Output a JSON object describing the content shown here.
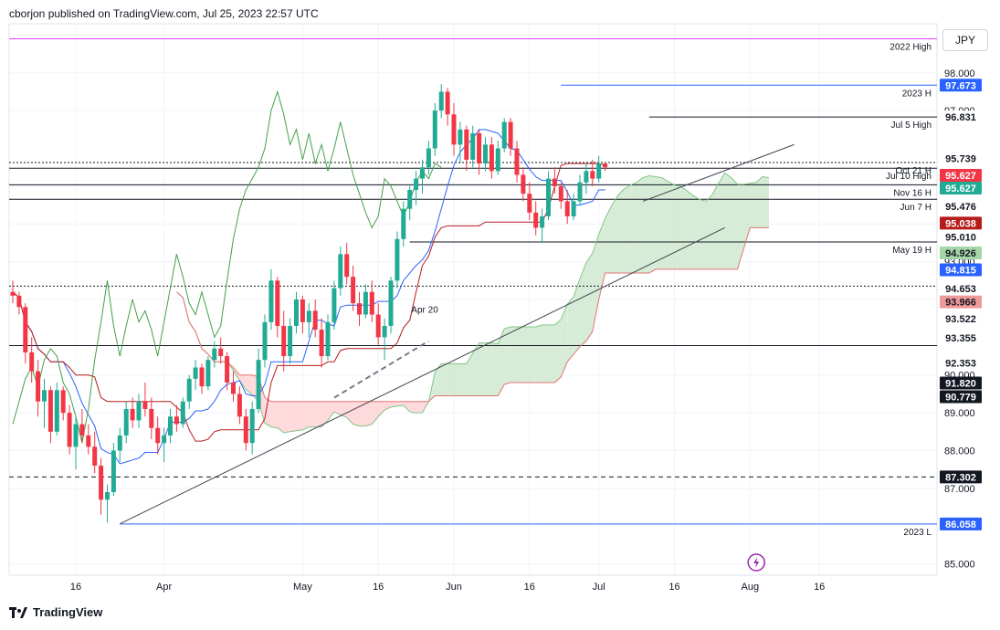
{
  "header": {
    "text": "cborjon published on TradingView.com, Jul 25, 2023 22:57 UTC"
  },
  "currency": "JPY",
  "footer": {
    "brand": "TradingView"
  },
  "colors": {
    "up": "#26a69a",
    "up_candle": "#22ab94",
    "down": "#f23645",
    "tenkan": "#2962ff",
    "kijun": "#b71c1c",
    "chikou": "#43a047",
    "cloud_bull": "#c8e6c9",
    "cloud_bear": "#ffcdd2",
    "grid": "#f0f3fa",
    "hline": "#131722",
    "high2022": "#e040fb",
    "blue_level": "#2962ff"
  },
  "chart_data": {
    "type": "candlestick",
    "symbol": "JPY",
    "x_ticks": [
      "16",
      "Apr",
      "May",
      "16",
      "Jun",
      "16",
      "Jul",
      "16",
      "Aug",
      "16"
    ],
    "y_ticks": [
      "98.000",
      "97.000",
      "95.000",
      "94.000",
      "93.000",
      "92.000",
      "90.000",
      "89.000",
      "88.000",
      "87.000",
      "85.000"
    ],
    "y_tick_values": [
      98,
      97,
      95,
      94,
      93,
      92,
      90,
      89,
      88,
      87,
      85
    ],
    "ylim": [
      84.7,
      99.3
    ],
    "horizontal_levels": [
      {
        "label": "2022 High",
        "value": 98.9,
        "color": "#e040fb"
      },
      {
        "label": "2023 H",
        "value": 97.673,
        "color": "#2962ff"
      },
      {
        "label": "Jul 5 High",
        "value": 96.831,
        "color": "#131722"
      },
      {
        "label": "Oct 21 H",
        "value": 95.627,
        "color": "#131722"
      },
      {
        "label": "Jul 10 High",
        "value": 95.476,
        "color": "#131722"
      },
      {
        "label": "Nov 16 H",
        "value": 95.038,
        "color": "#131722"
      },
      {
        "label": "Jun 7 H",
        "value": 94.653,
        "color": "#131722"
      },
      {
        "label": "May 19 H",
        "value": 93.522,
        "color": "#131722"
      },
      {
        "label": "",
        "value": 92.353,
        "color": "#131722"
      },
      {
        "label": "",
        "value": 90.779,
        "color": "#131722"
      },
      {
        "label": "",
        "value": 87.302,
        "color": "#131722"
      },
      {
        "label": "2023 L",
        "value": 86.058,
        "color": "#2962ff"
      }
    ],
    "price_badges": [
      {
        "value": "97.673",
        "bg": "#2962ff",
        "fg": "#ffffff"
      },
      {
        "value": "96.831",
        "bg": "#ffffff",
        "fg": "#131722"
      },
      {
        "value": "95.739",
        "bg": "#ffffff",
        "fg": "#131722"
      },
      {
        "value": "95.627",
        "bg": "#f23645",
        "fg": "#ffffff"
      },
      {
        "value": "95.627",
        "bg": "#22ab94",
        "fg": "#ffffff"
      },
      {
        "value": "95.476",
        "bg": "#ffffff",
        "fg": "#131722"
      },
      {
        "value": "95.038",
        "bg": "#b71c1c",
        "fg": "#ffffff"
      },
      {
        "value": "95.010",
        "bg": "#ffffff",
        "fg": "#131722"
      },
      {
        "value": "94.926",
        "bg": "#a5d6a7",
        "fg": "#131722"
      },
      {
        "value": "94.815",
        "bg": "#2962ff",
        "fg": "#ffffff"
      },
      {
        "value": "94.653",
        "bg": "#ffffff",
        "fg": "#131722"
      },
      {
        "value": "93.966",
        "bg": "#ef9a9a",
        "fg": "#131722"
      },
      {
        "value": "93.522",
        "bg": "#ffffff",
        "fg": "#131722"
      },
      {
        "value": "93.355",
        "bg": "#ffffff",
        "fg": "#131722"
      },
      {
        "value": "92.353",
        "bg": "#ffffff",
        "fg": "#131722"
      },
      {
        "value": "91.820",
        "bg": "#131722",
        "fg": "#ffffff"
      },
      {
        "value": "90.779",
        "bg": "#131722",
        "fg": "#ffffff"
      },
      {
        "value": "87.302",
        "bg": "#131722",
        "fg": "#ffffff"
      },
      {
        "value": "86.058",
        "bg": "#2962ff",
        "fg": "#ffffff"
      }
    ],
    "annotations": [
      {
        "text": "Apr 20",
        "x_index": 67,
        "value": 91.5
      }
    ],
    "candles": [
      [
        92.2,
        92.5,
        91.9,
        92.1
      ],
      [
        92.1,
        92.2,
        91.6,
        91.8
      ],
      [
        91.8,
        91.9,
        90.3,
        90.6
      ],
      [
        90.6,
        91.0,
        89.8,
        90.1
      ],
      [
        90.1,
        90.4,
        88.9,
        89.3
      ],
      [
        89.3,
        89.9,
        88.6,
        89.6
      ],
      [
        89.6,
        89.7,
        88.2,
        88.5
      ],
      [
        88.5,
        89.8,
        88.4,
        89.6
      ],
      [
        89.6,
        89.7,
        88.8,
        89.0
      ],
      [
        89.0,
        89.2,
        87.9,
        88.1
      ],
      [
        88.1,
        88.9,
        87.5,
        88.7
      ],
      [
        88.7,
        89.1,
        88.2,
        88.4
      ],
      [
        88.4,
        88.7,
        87.9,
        88.1
      ],
      [
        88.1,
        88.5,
        87.4,
        87.6
      ],
      [
        87.6,
        87.8,
        86.3,
        86.7
      ],
      [
        86.7,
        87.1,
        86.1,
        86.9
      ],
      [
        86.9,
        88.2,
        86.8,
        88.0
      ],
      [
        88.0,
        88.6,
        87.7,
        88.4
      ],
      [
        88.4,
        89.3,
        88.2,
        89.1
      ],
      [
        89.1,
        89.4,
        88.6,
        88.8
      ],
      [
        88.8,
        89.5,
        88.6,
        89.3
      ],
      [
        89.3,
        89.8,
        88.9,
        89.1
      ],
      [
        89.1,
        89.4,
        88.3,
        88.6
      ],
      [
        88.6,
        88.9,
        87.9,
        88.2
      ],
      [
        88.2,
        88.6,
        87.7,
        88.4
      ],
      [
        88.4,
        89.1,
        88.2,
        88.9
      ],
      [
        88.9,
        89.2,
        88.5,
        88.7
      ],
      [
        88.7,
        89.4,
        88.6,
        89.3
      ],
      [
        89.3,
        90.0,
        89.1,
        89.9
      ],
      [
        89.9,
        90.4,
        89.6,
        90.2
      ],
      [
        90.2,
        90.3,
        89.5,
        89.7
      ],
      [
        89.7,
        90.5,
        89.6,
        90.4
      ],
      [
        90.4,
        90.9,
        90.2,
        90.7
      ],
      [
        90.7,
        91.0,
        90.3,
        90.5
      ],
      [
        90.5,
        90.6,
        89.6,
        89.8
      ],
      [
        89.8,
        90.1,
        89.3,
        89.5
      ],
      [
        89.5,
        89.7,
        88.7,
        88.9
      ],
      [
        88.9,
        89.1,
        88.0,
        88.2
      ],
      [
        88.2,
        89.3,
        87.9,
        89.1
      ],
      [
        89.1,
        90.7,
        89.0,
        90.4
      ],
      [
        90.4,
        91.6,
        90.2,
        91.4
      ],
      [
        91.4,
        92.8,
        91.2,
        92.5
      ],
      [
        92.5,
        92.6,
        91.0,
        91.3
      ],
      [
        91.3,
        91.7,
        90.1,
        90.5
      ],
      [
        90.5,
        91.5,
        90.3,
        91.3
      ],
      [
        91.3,
        92.2,
        91.1,
        92.0
      ],
      [
        92.0,
        92.1,
        91.1,
        91.4
      ],
      [
        91.4,
        91.9,
        91.0,
        91.7
      ],
      [
        91.7,
        92.0,
        91.0,
        91.2
      ],
      [
        91.2,
        91.5,
        90.2,
        90.5
      ],
      [
        90.5,
        91.6,
        90.4,
        91.4
      ],
      [
        91.4,
        92.5,
        91.2,
        92.3
      ],
      [
        92.3,
        93.4,
        92.1,
        93.2
      ],
      [
        93.2,
        93.5,
        92.4,
        92.6
      ],
      [
        92.6,
        92.9,
        91.7,
        91.9
      ],
      [
        91.9,
        92.2,
        91.3,
        91.6
      ],
      [
        91.6,
        92.4,
        91.5,
        92.2
      ],
      [
        92.2,
        92.5,
        91.4,
        91.6
      ],
      [
        91.6,
        91.9,
        90.8,
        91.0
      ],
      [
        91.0,
        91.5,
        90.4,
        91.3
      ],
      [
        91.3,
        92.6,
        91.1,
        92.5
      ],
      [
        92.5,
        93.8,
        92.3,
        93.6
      ],
      [
        93.6,
        94.6,
        93.4,
        94.4
      ],
      [
        94.4,
        95.0,
        94.1,
        94.9
      ],
      [
        94.9,
        95.4,
        94.5,
        95.2
      ],
      [
        95.2,
        95.7,
        94.8,
        95.5
      ],
      [
        95.5,
        96.2,
        95.3,
        96.0
      ],
      [
        96.0,
        97.2,
        95.8,
        97.0
      ],
      [
        97.0,
        97.7,
        96.8,
        97.5
      ],
      [
        97.5,
        97.6,
        96.6,
        96.9
      ],
      [
        96.9,
        97.2,
        95.8,
        96.1
      ],
      [
        96.1,
        96.7,
        95.6,
        96.5
      ],
      [
        96.5,
        96.6,
        95.4,
        95.7
      ],
      [
        95.7,
        96.6,
        95.5,
        96.4
      ],
      [
        96.4,
        96.5,
        95.3,
        95.6
      ],
      [
        95.6,
        96.3,
        95.4,
        96.1
      ],
      [
        96.1,
        96.3,
        95.2,
        95.4
      ],
      [
        95.4,
        96.2,
        95.3,
        96.0
      ],
      [
        96.0,
        96.8,
        95.9,
        96.7
      ],
      [
        96.7,
        96.8,
        95.8,
        96.0
      ],
      [
        96.0,
        96.2,
        95.1,
        95.3
      ],
      [
        95.3,
        95.5,
        94.6,
        94.8
      ],
      [
        94.8,
        95.1,
        94.1,
        94.3
      ],
      [
        94.3,
        94.6,
        93.7,
        93.9
      ],
      [
        93.9,
        94.4,
        93.5,
        94.2
      ],
      [
        94.2,
        95.4,
        94.1,
        95.2
      ],
      [
        95.2,
        95.5,
        94.8,
        95.0
      ],
      [
        95.0,
        95.1,
        94.4,
        94.6
      ],
      [
        94.6,
        94.9,
        94.0,
        94.2
      ],
      [
        94.2,
        94.8,
        94.1,
        94.6
      ],
      [
        94.6,
        95.3,
        94.5,
        95.1
      ],
      [
        95.1,
        95.6,
        94.8,
        95.4
      ],
      [
        95.4,
        95.7,
        95.0,
        95.2
      ],
      [
        95.2,
        95.8,
        95.1,
        95.6
      ],
      [
        95.6,
        95.6,
        95.4,
        95.5
      ]
    ]
  }
}
